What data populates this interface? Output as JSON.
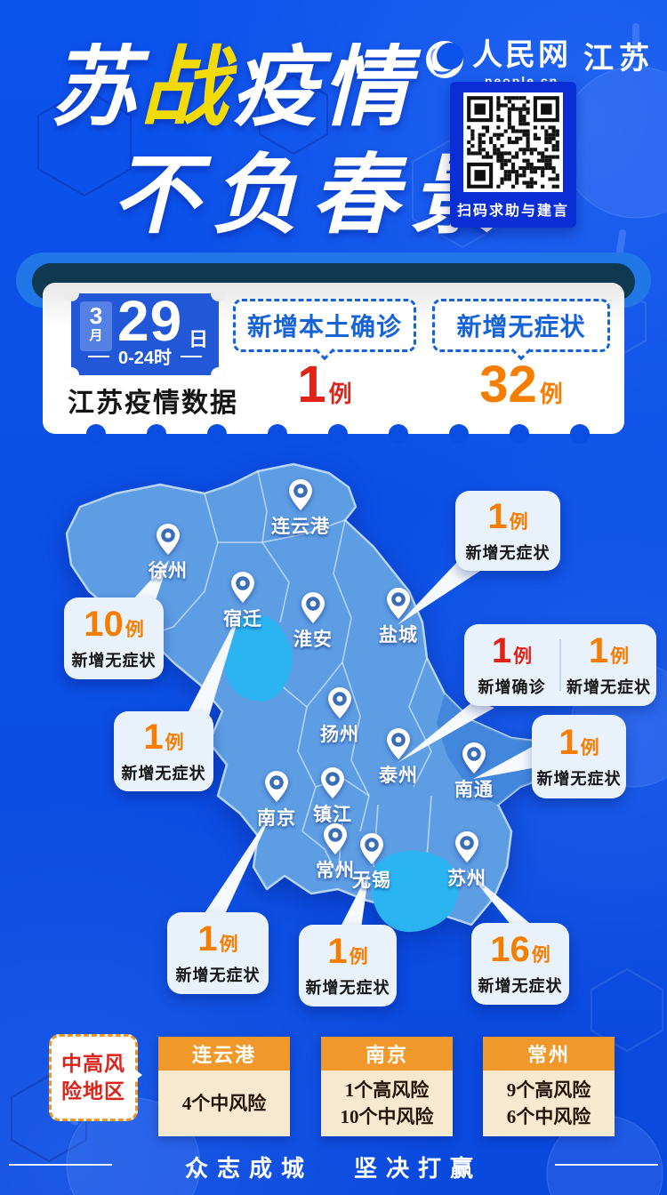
{
  "colors": {
    "page_bg": "#0b4ee4",
    "map_fill": "#5d9de4",
    "lake_fill": "#2ab5f2",
    "confirmed_red": "#e02318",
    "asymptomatic_orange": "#f57d00",
    "label_blue": "#1663d8",
    "accent_yellow": "#f2d908",
    "ticket_blue": "#2257d8",
    "risk_header_orange": "#f0992a",
    "risk_body_cream": "#f7e9cf"
  },
  "header": {
    "title_chars": [
      {
        "ch": "苏"
      },
      {
        "ch": "战",
        "accent": true
      },
      {
        "ch": "疫"
      },
      {
        "ch": "情"
      }
    ],
    "title_line2": "不负春景",
    "logo": {
      "brand": "人民网",
      "domain": "people.cn",
      "region": "江苏"
    },
    "qr_caption": "扫码求助与建言"
  },
  "summary": {
    "date": {
      "month": "3",
      "month_unit": "月",
      "day": "29",
      "day_unit": "日",
      "time_range": "0-24时"
    },
    "card_title": "江苏疫情数据",
    "stats": [
      {
        "label": "新增本土确诊",
        "value": "1",
        "unit": "例"
      },
      {
        "label": "新增无症状",
        "value": "32",
        "unit": "例"
      }
    ]
  },
  "map": {
    "cities": [
      {
        "name": "连云港"
      },
      {
        "name": "徐州"
      },
      {
        "name": "宿迁"
      },
      {
        "name": "淮安"
      },
      {
        "name": "盐城"
      },
      {
        "name": "扬州"
      },
      {
        "name": "泰州"
      },
      {
        "name": "南通"
      },
      {
        "name": "南京"
      },
      {
        "name": "镇江"
      },
      {
        "name": "常州"
      },
      {
        "name": "无锡"
      },
      {
        "name": "苏州"
      }
    ],
    "callouts": [
      {
        "city": "盐城",
        "value": "1",
        "unit": "例",
        "label": "新增无症状"
      },
      {
        "city": "徐州",
        "value": "10",
        "unit": "例",
        "label": "新增无症状"
      },
      {
        "city": "泰州",
        "stats": [
          {
            "value": "1",
            "unit": "例",
            "label": "新增确诊"
          },
          {
            "value": "1",
            "unit": "例",
            "label": "新增无症状"
          }
        ]
      },
      {
        "city": "宿迁",
        "value": "1",
        "unit": "例",
        "label": "新增无症状"
      },
      {
        "city": "南通",
        "value": "1",
        "unit": "例",
        "label": "新增无症状"
      },
      {
        "city": "南京",
        "value": "1",
        "unit": "例",
        "label": "新增无症状"
      },
      {
        "city": "无锡",
        "value": "1",
        "unit": "例",
        "label": "新增无症状"
      },
      {
        "city": "苏州",
        "value": "16",
        "unit": "例",
        "label": "新增无症状"
      }
    ]
  },
  "risk": {
    "tag_line1": "中高风",
    "tag_line2": "险地区",
    "cards": [
      {
        "city": "连云港",
        "lines": [
          "4个中风险"
        ]
      },
      {
        "city": "南京",
        "lines": [
          "1个高风险",
          "10个中风险"
        ]
      },
      {
        "city": "常州",
        "lines": [
          "9个高风险",
          "6个中风险"
        ]
      }
    ]
  },
  "footer": {
    "slogan_left": "众志成城",
    "slogan_right": "坚决打赢"
  }
}
